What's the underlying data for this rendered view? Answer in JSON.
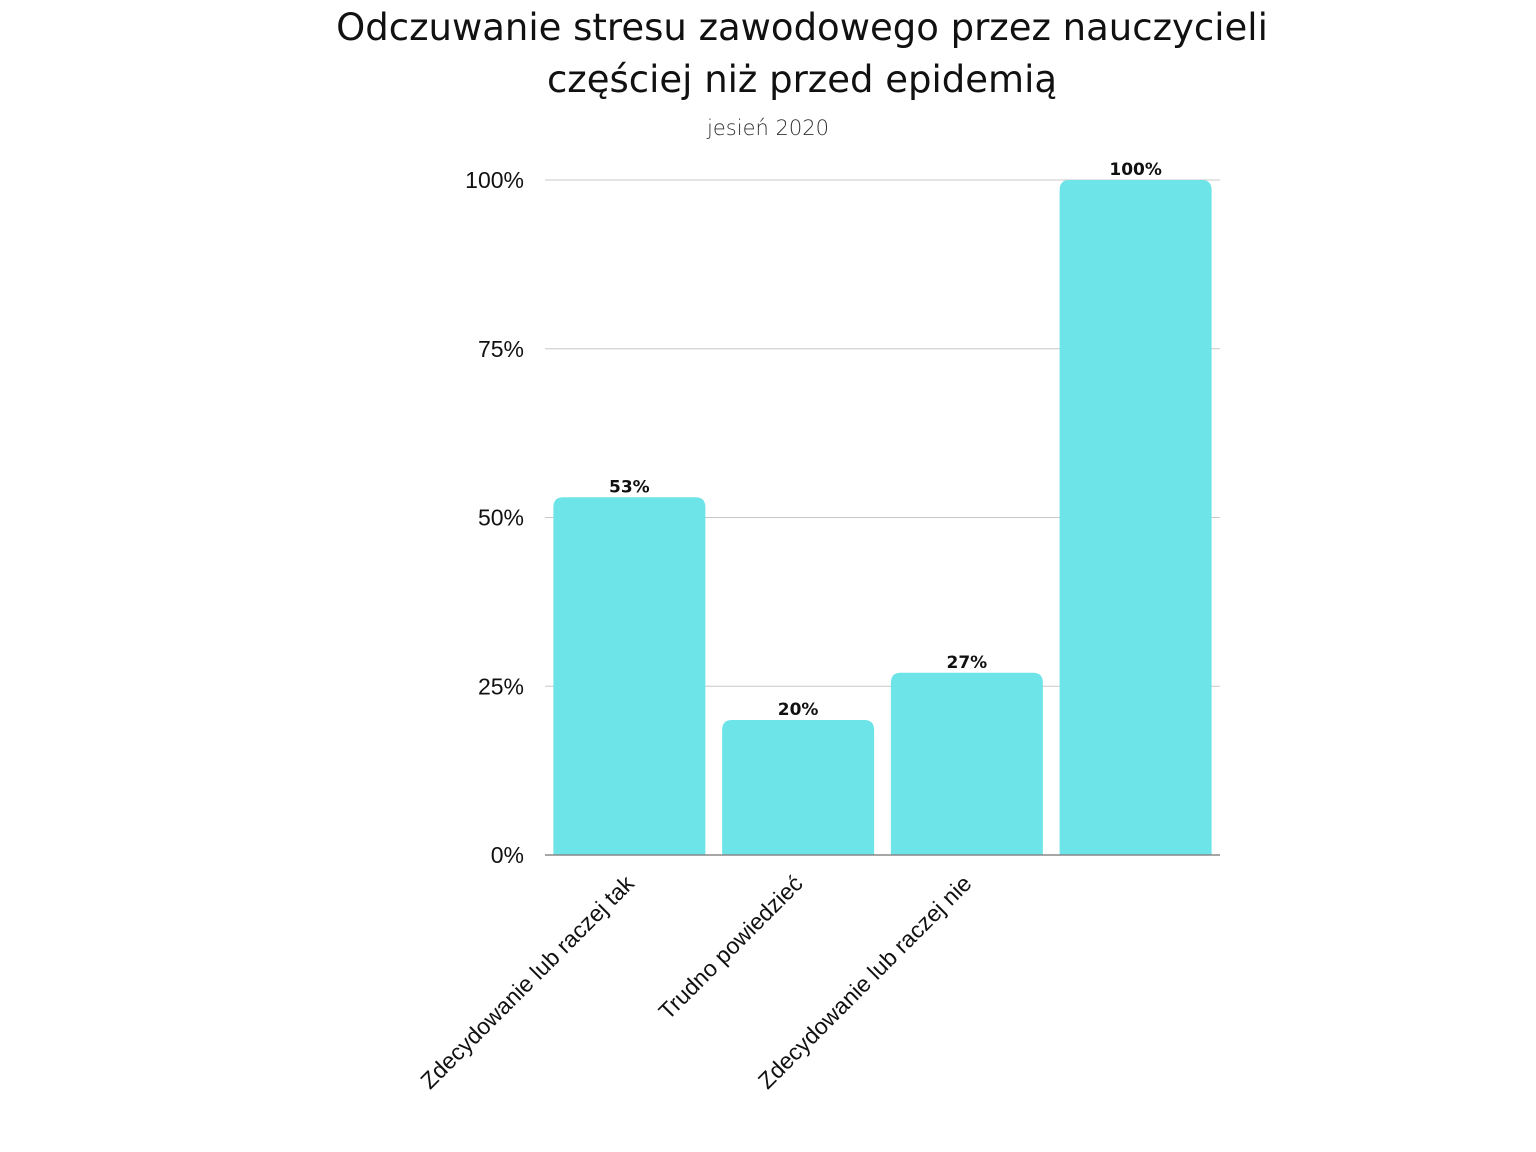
{
  "title_lines": [
    "Odczuwanie stresu zawodowego przez nauczycieli",
    "częściej niż przed epidemią"
  ],
  "subtitle": "jesień 2020",
  "colors": {
    "bar": "#6ce4e8",
    "grid": "#c8c8c8",
    "axis": "#888888",
    "text": "#111111"
  },
  "chart_data": {
    "type": "bar",
    "title": "Odczuwanie stresu zawodowego przez nauczycieli częściej niż przed epidemią",
    "subtitle": "jesień 2020",
    "categories": [
      "Zdecydowanie lub raczej tak",
      "Trudno powiedzieć",
      "Zdecydowanie lub raczej nie",
      ""
    ],
    "values": [
      53,
      20,
      27,
      100
    ],
    "data_labels": [
      "53%",
      "20%",
      "27%",
      "100%"
    ],
    "ylim": [
      0,
      100
    ],
    "yticks": [
      0,
      25,
      50,
      75,
      100
    ],
    "ytick_labels": [
      "0%",
      "25%",
      "50%",
      "75%",
      "100%"
    ],
    "xlabel": "",
    "ylabel": "",
    "grid": true
  }
}
